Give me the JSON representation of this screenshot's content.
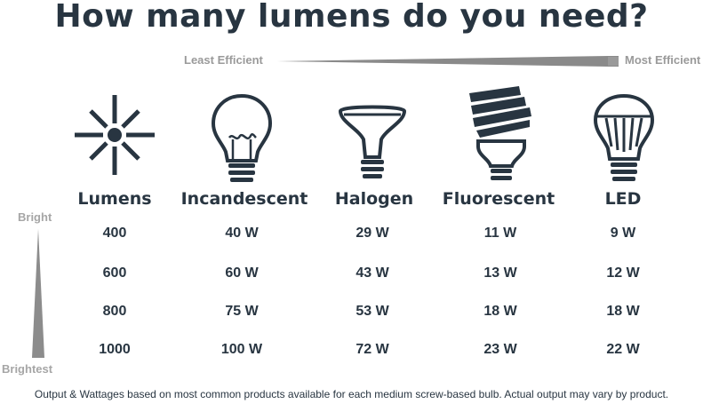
{
  "title": "How many lumens do you need?",
  "efficiency": {
    "left_label": "Least Efficient",
    "right_label": "Most Efficient"
  },
  "brightness": {
    "top_label": "Bright",
    "bottom_label": "Brightest"
  },
  "columns": [
    {
      "header": "Lumens",
      "icon": "sun-burst-icon"
    },
    {
      "header": "Incandescent",
      "icon": "incandescent-bulb-icon"
    },
    {
      "header": "Halogen",
      "icon": "halogen-bulb-icon"
    },
    {
      "header": "Fluorescent",
      "icon": "cfl-bulb-icon"
    },
    {
      "header": "LED",
      "icon": "led-bulb-icon"
    }
  ],
  "rows": [
    [
      "400",
      "40 W",
      "29 W",
      "11 W",
      "9 W"
    ],
    [
      "600",
      "60 W",
      "43 W",
      "13 W",
      "12 W"
    ],
    [
      "800",
      "75 W",
      "53 W",
      "18 W",
      "18 W"
    ],
    [
      "1000",
      "100 W",
      "72 W",
      "23 W",
      "22 W"
    ]
  ],
  "footnote": "Output & Wattages based on most common products available for each medium screw-based bulb. Actual output may vary by product.",
  "colors": {
    "primary": "#283541",
    "muted": "#9a9a9a"
  }
}
